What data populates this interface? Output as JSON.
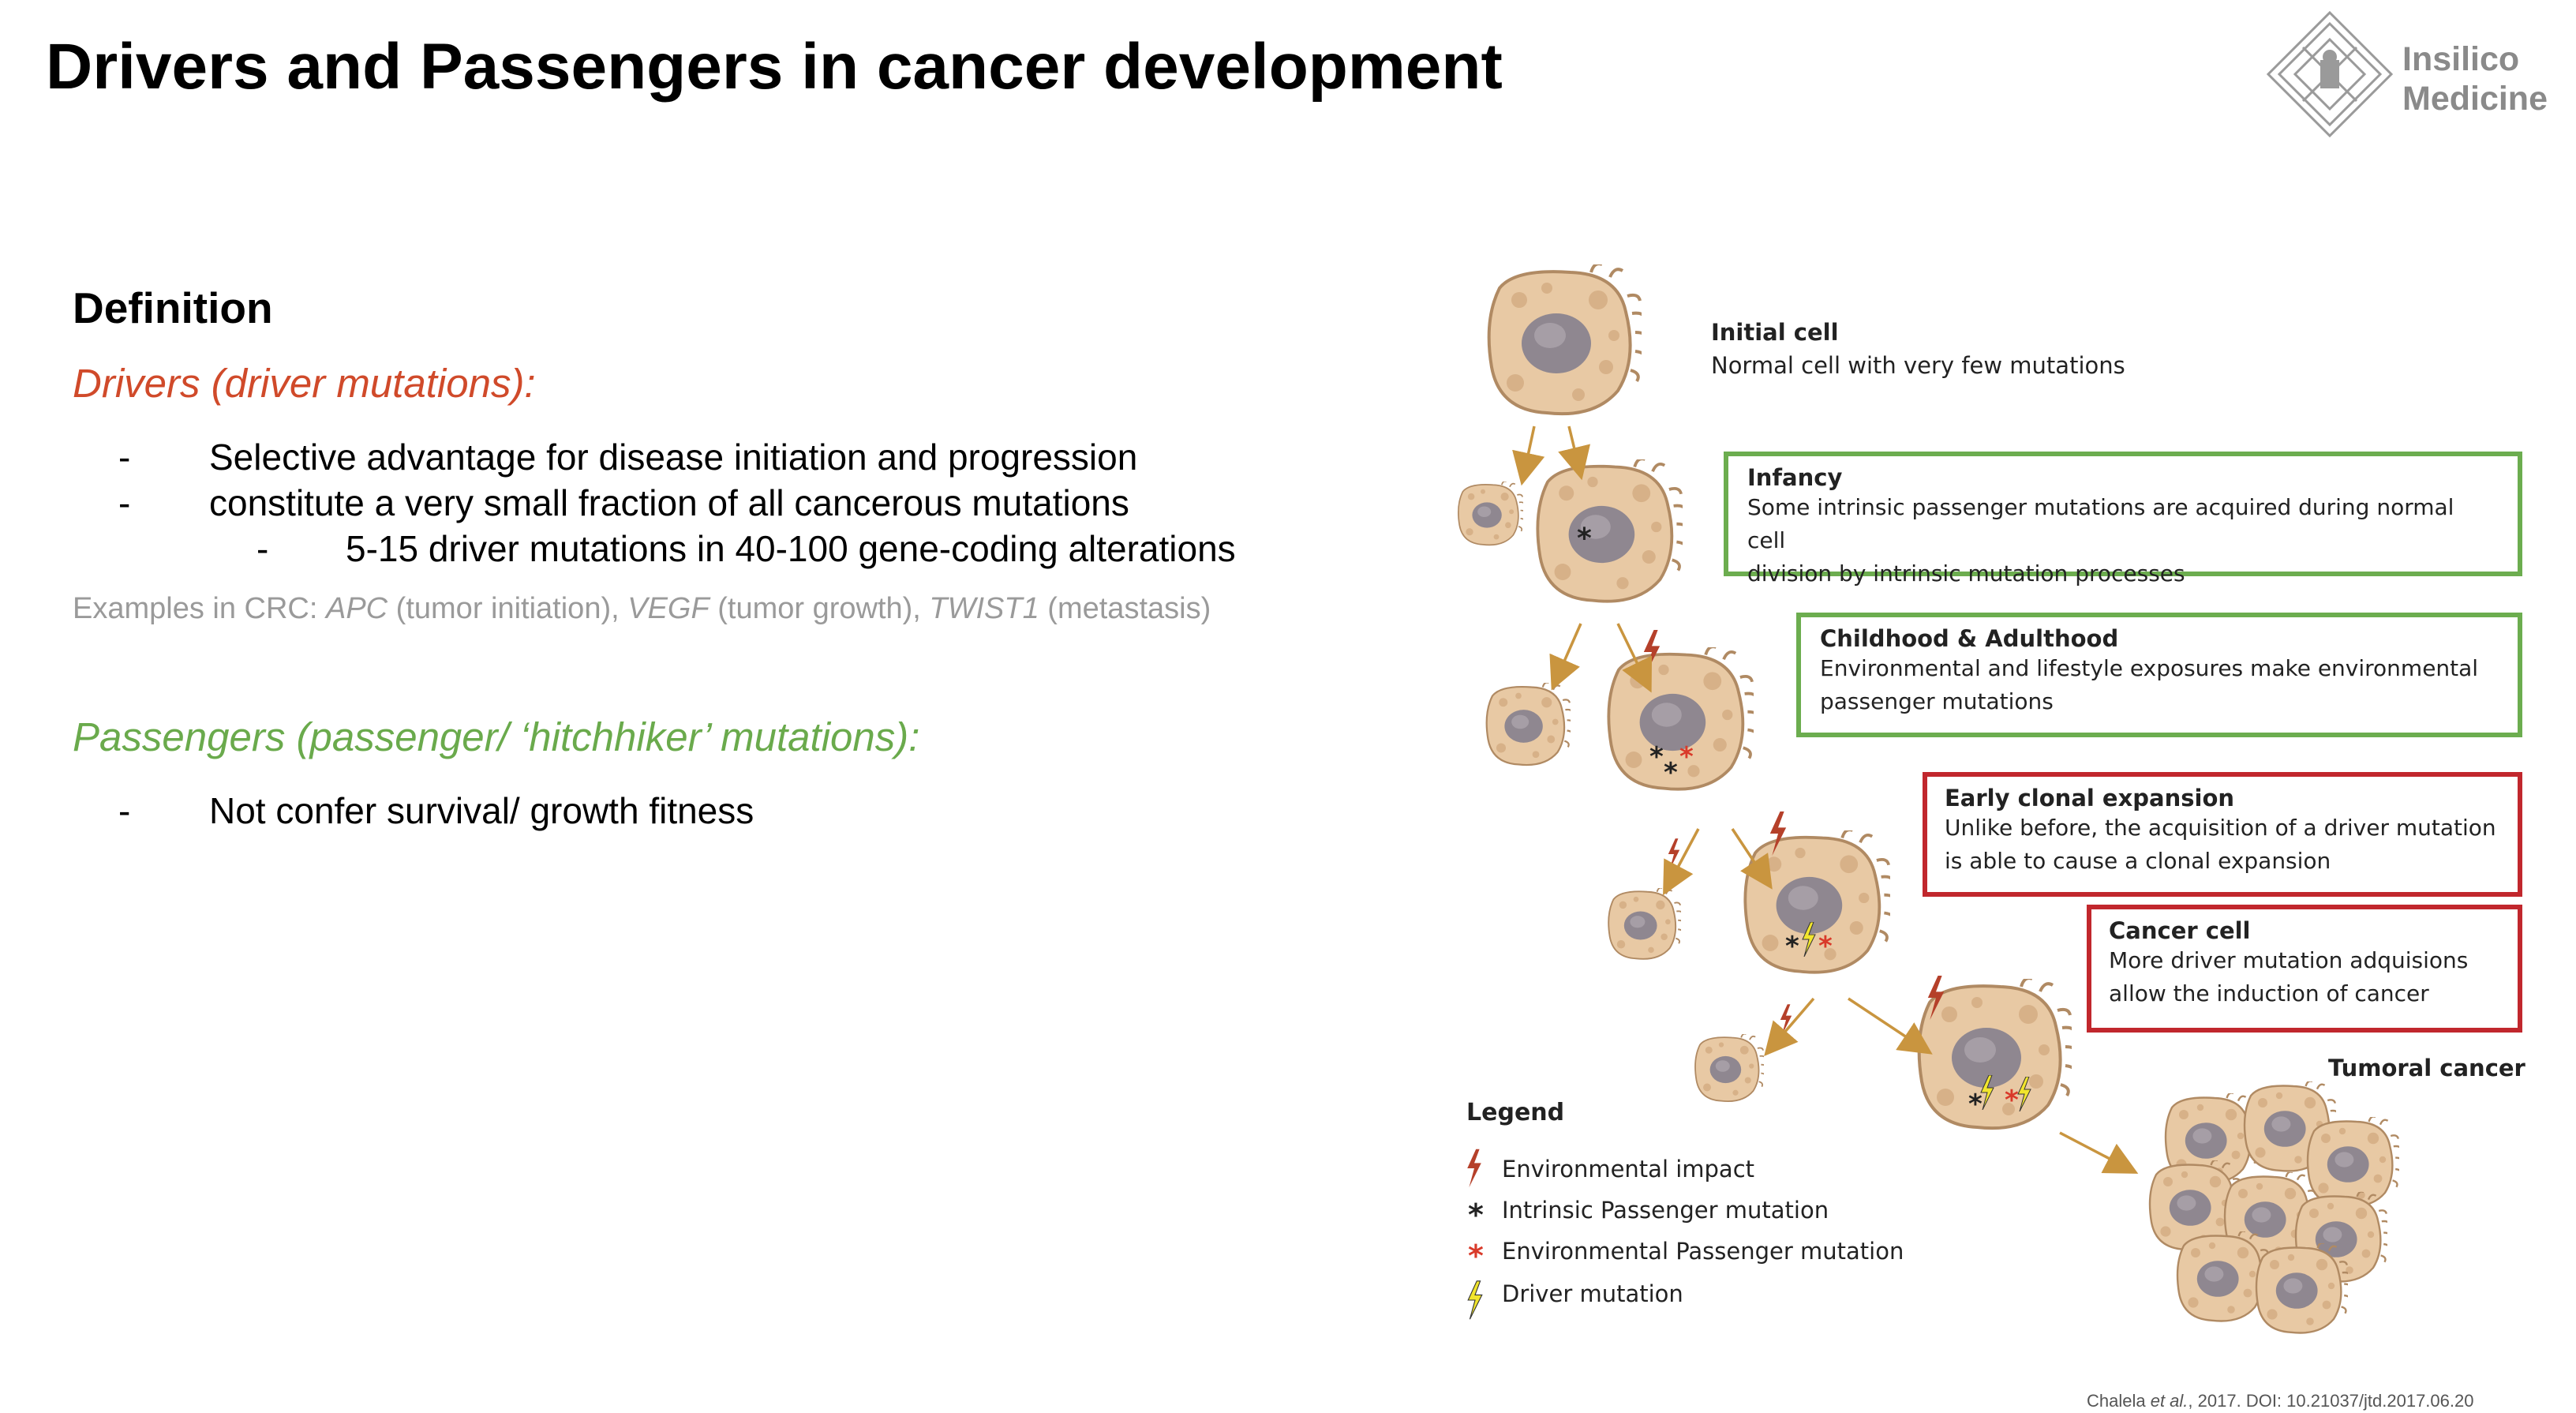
{
  "slide": {
    "title": "Drivers and Passengers in cancer development"
  },
  "logo": {
    "line1": "Insilico",
    "line2": "Medicine"
  },
  "definition": {
    "heading": "Definition",
    "drivers_heading": "Drivers (driver mutations):",
    "driver_bullets": [
      "Selective advantage for disease initiation and progression",
      "constitute a very small fraction of all cancerous mutations",
      "5-15 driver mutations in 40-100 gene-coding alterations"
    ],
    "examples_prefix": "Examples in CRC: ",
    "examples": [
      {
        "gene": "APC",
        "desc": " (tumor initiation), "
      },
      {
        "gene": "VEGF",
        "desc": " (tumor growth), "
      },
      {
        "gene": "TWIST1",
        "desc": " (metastasis)"
      }
    ],
    "passengers_heading": "Passengers (passenger/ ‘hitchhiker’ mutations):",
    "passenger_bullets": [
      "Not confer survival/ growth fitness"
    ],
    "dash": "-"
  },
  "figure": {
    "initial_cell": {
      "title": "Initial cell",
      "desc": "Normal cell with very few mutations"
    },
    "stages": [
      {
        "title": "Infancy",
        "desc_lines": [
          "Some intrinsic passenger mutations are acquired during normal cell",
          "division by intrinsic mutation processes"
        ]
      },
      {
        "title": "Childhood & Adulthood",
        "desc_lines": [
          "Environmental and lifestyle exposures make environmental",
          "passenger mutations"
        ]
      },
      {
        "title": "Early clonal expansion",
        "desc_lines": [
          "Unlike before, the acquisition of a driver mutation",
          "is able to cause a clonal expansion"
        ]
      },
      {
        "title": "Cancer cell",
        "desc_lines": [
          "More driver mutation adquisions",
          "allow the induction of cancer"
        ]
      }
    ],
    "tumoral_label": "Tumoral cancer",
    "legend": {
      "title": "Legend",
      "items": [
        "Environmental impact",
        "Intrinsic Passenger mutation",
        "Environmental Passenger mutation",
        "Driver mutation"
      ]
    },
    "colors": {
      "cell_fill": "#e8c9a4",
      "cell_stroke": "#b08a63",
      "nucleus": "#8f8790",
      "green_box": "#6cad4f",
      "red_box": "#c1272d",
      "bolt_env": "#b5402a",
      "bolt_driver": "#f1e52d",
      "arrow": "#c9953f"
    }
  },
  "citation": {
    "author": "Chalela ",
    "etal": "et al.",
    "rest": ", 2017. DOI: 10.21037/jtd.2017.06.20"
  }
}
